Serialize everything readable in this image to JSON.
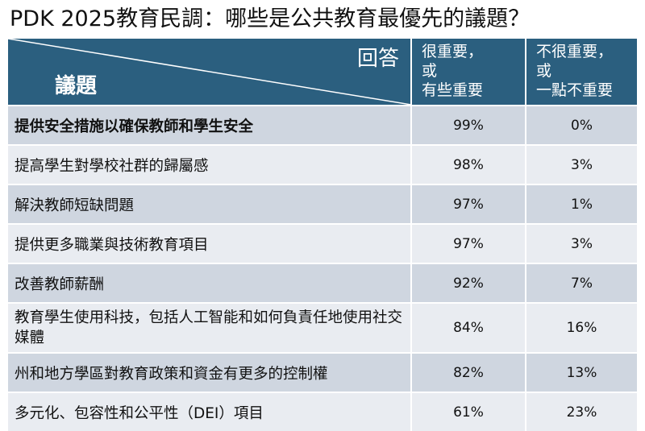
{
  "title": "PDK 2025教育民調：哪些是公共教育最優先的議題？",
  "header": {
    "corner_answer": "回答",
    "corner_issue": "議題",
    "col2_lines": [
      "很重要，",
      "或",
      "有些重要"
    ],
    "col3_lines": [
      "不很重要，",
      "或",
      "一點不重要"
    ]
  },
  "rows": [
    {
      "issue": "提供安全措施以確保教師和學生安全",
      "important": "99%",
      "not_important": "0%"
    },
    {
      "issue": "提高學生對學校社群的歸屬感",
      "important": "98%",
      "not_important": "3%"
    },
    {
      "issue": "解決教師短缺問題",
      "important": "97%",
      "not_important": "1%"
    },
    {
      "issue": "提供更多職業與技術教育項目",
      "important": "97%",
      "not_important": "3%"
    },
    {
      "issue": "改善教師薪酬",
      "important": "92%",
      "not_important": "7%"
    },
    {
      "issue": "教育學生使用科技，包括人工智能和如何負責任地使用社交媒體",
      "important": "84%",
      "not_important": "16%"
    },
    {
      "issue": "州和地方學區對教育政策和資金有更多的控制權",
      "important": "82%",
      "not_important": "13%"
    },
    {
      "issue": "多元化、包容性和公平性（DEI）項目",
      "important": "61%",
      "not_important": "23%"
    }
  ],
  "colors": {
    "header_bg": "#2b5f7f",
    "row_dark": "#cfd6e0",
    "row_light": "#e9ecf1"
  }
}
